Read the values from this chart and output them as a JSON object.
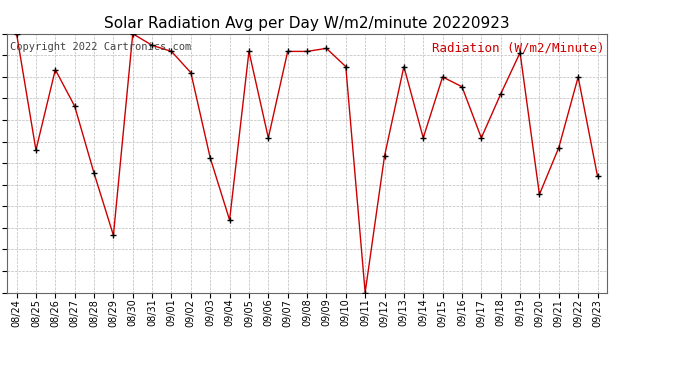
{
  "title": "Solar Radiation Avg per Day W/m2/minute 20220923",
  "copyright": "Copyright 2022 Cartronics.com",
  "legend_label": "Radiation (W/m2/Minute)",
  "dates": [
    "08/24",
    "08/25",
    "08/26",
    "08/27",
    "08/28",
    "08/29",
    "08/30",
    "08/31",
    "09/01",
    "09/02",
    "09/03",
    "09/04",
    "09/05",
    "09/06",
    "09/07",
    "09/08",
    "09/09",
    "09/10",
    "09/11",
    "09/12",
    "09/13",
    "09/14",
    "09/15",
    "09/16",
    "09/17",
    "09/18",
    "09/19",
    "09/20",
    "09/21",
    "09/22",
    "09/23"
  ],
  "values": [
    449.0,
    258.0,
    390.0,
    330.0,
    220.0,
    118.0,
    449.0,
    430.0,
    420.0,
    385.0,
    245.0,
    143.0,
    420.0,
    278.0,
    420.0,
    420.0,
    425.0,
    395.0,
    24.0,
    248.0,
    395.0,
    278.0,
    378.0,
    362.0,
    278.0,
    350.0,
    418.0,
    185.0,
    262.0,
    378.0,
    215.0
  ],
  "line_color": "#cc0000",
  "marker_color": "#000000",
  "background_color": "#ffffff",
  "grid_color": "#bbbbbb",
  "ylim_min": 24.0,
  "ylim_max": 449.0,
  "yticks": [
    24.0,
    59.4,
    94.8,
    130.2,
    165.7,
    201.1,
    236.5,
    271.9,
    307.3,
    342.8,
    378.2,
    413.6,
    449.0
  ],
  "title_fontsize": 11,
  "legend_fontsize": 9,
  "copyright_fontsize": 7.5,
  "tick_fontsize": 7
}
